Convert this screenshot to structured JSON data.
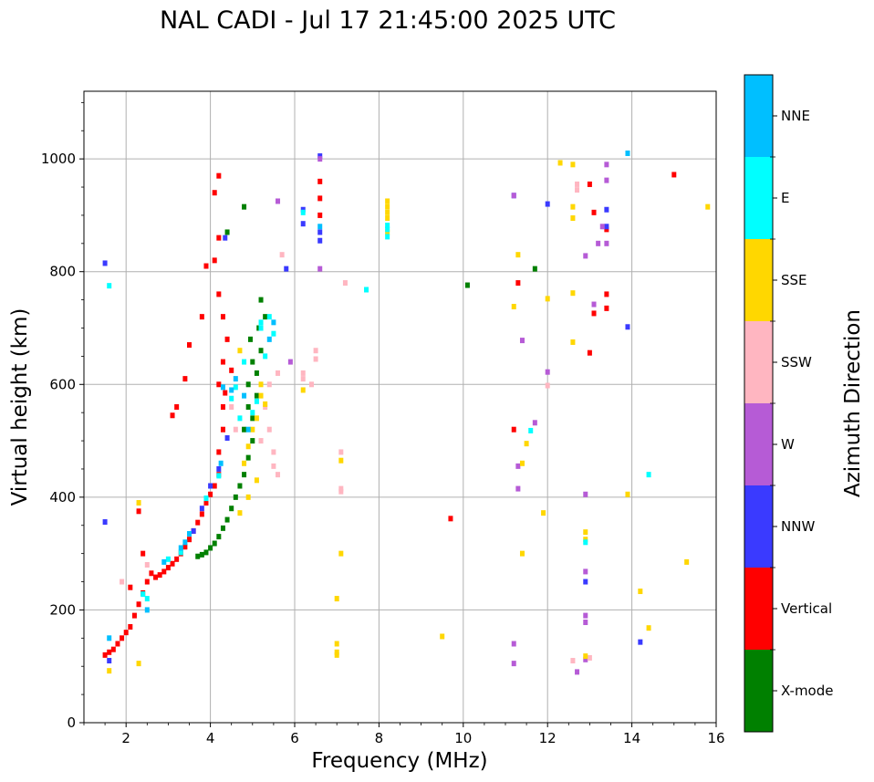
{
  "chart_data": {
    "type": "scatter",
    "title": "NAL CADI - Jul 17 21:45:00 2025 UTC",
    "xlabel": "Frequency (MHz)",
    "ylabel": "Virtual height (km)",
    "xlim": [
      1,
      16
    ],
    "ylim": [
      0,
      1120
    ],
    "xticks": [
      2,
      4,
      6,
      8,
      10,
      12,
      14,
      16
    ],
    "yticks": [
      0,
      200,
      400,
      600,
      800,
      1000
    ],
    "grid": true,
    "colorbar": {
      "label": "Azimuth Direction",
      "categories": [
        {
          "name": "X-mode",
          "color": "#008000"
        },
        {
          "name": "Vertical",
          "color": "#ff0000"
        },
        {
          "name": "NNW",
          "color": "#3a3aff"
        },
        {
          "name": "W",
          "color": "#b65bd6"
        },
        {
          "name": "SSW",
          "color": "#ffb6c1"
        },
        {
          "name": "SSE",
          "color": "#ffd700"
        },
        {
          "name": "E",
          "color": "#00ffff"
        },
        {
          "name": "NNE",
          "color": "#00bfff"
        }
      ]
    },
    "series": [
      {
        "name": "X-mode",
        "points": [
          [
            3.7,
            295
          ],
          [
            3.8,
            298
          ],
          [
            3.9,
            302
          ],
          [
            4.0,
            310
          ],
          [
            4.1,
            318
          ],
          [
            4.2,
            330
          ],
          [
            4.3,
            345
          ],
          [
            4.4,
            360
          ],
          [
            4.5,
            380
          ],
          [
            4.6,
            400
          ],
          [
            4.7,
            420
          ],
          [
            4.8,
            440
          ],
          [
            4.9,
            470
          ],
          [
            5.0,
            500
          ],
          [
            5.0,
            540
          ],
          [
            5.1,
            580
          ],
          [
            5.1,
            620
          ],
          [
            5.2,
            660
          ],
          [
            4.9,
            560
          ],
          [
            4.9,
            600
          ],
          [
            4.8,
            520
          ],
          [
            5.0,
            640
          ],
          [
            4.4,
            870
          ],
          [
            4.8,
            915
          ],
          [
            5.2,
            750
          ],
          [
            5.3,
            720
          ],
          [
            10.1,
            776
          ],
          [
            11.7,
            805
          ],
          [
            4.95,
            680
          ],
          [
            5.15,
            700
          ]
        ]
      },
      {
        "name": "Vertical",
        "points": [
          [
            1.5,
            120
          ],
          [
            1.6,
            125
          ],
          [
            1.7,
            130
          ],
          [
            1.8,
            140
          ],
          [
            1.9,
            150
          ],
          [
            2.0,
            160
          ],
          [
            2.1,
            170
          ],
          [
            2.2,
            190
          ],
          [
            2.3,
            210
          ],
          [
            2.4,
            230
          ],
          [
            2.5,
            250
          ],
          [
            2.6,
            265
          ],
          [
            2.7,
            258
          ],
          [
            2.8,
            262
          ],
          [
            2.9,
            268
          ],
          [
            3.0,
            275
          ],
          [
            3.1,
            282
          ],
          [
            3.2,
            290
          ],
          [
            3.3,
            300
          ],
          [
            3.4,
            312
          ],
          [
            3.5,
            325
          ],
          [
            3.6,
            340
          ],
          [
            3.7,
            355
          ],
          [
            3.8,
            370
          ],
          [
            3.9,
            390
          ],
          [
            4.0,
            405
          ],
          [
            4.1,
            420
          ],
          [
            4.2,
            440
          ],
          [
            4.2,
            480
          ],
          [
            4.3,
            520
          ],
          [
            4.3,
            560
          ],
          [
            4.2,
            600
          ],
          [
            4.3,
            640
          ],
          [
            4.4,
            680
          ],
          [
            4.3,
            720
          ],
          [
            4.2,
            760
          ],
          [
            4.1,
            820
          ],
          [
            4.2,
            860
          ],
          [
            4.1,
            940
          ],
          [
            4.2,
            970
          ],
          [
            3.5,
            670
          ],
          [
            3.4,
            610
          ],
          [
            3.2,
            560
          ],
          [
            3.1,
            545
          ],
          [
            3.8,
            720
          ],
          [
            3.9,
            810
          ],
          [
            2.3,
            375
          ],
          [
            2.4,
            300
          ],
          [
            2.1,
            240
          ],
          [
            6.6,
            960
          ],
          [
            6.6,
            930
          ],
          [
            6.6,
            900
          ],
          [
            9.7,
            362
          ],
          [
            11.2,
            520
          ],
          [
            11.3,
            780
          ],
          [
            13.0,
            656
          ],
          [
            13.4,
            875
          ],
          [
            13.4,
            760
          ],
          [
            13.4,
            735
          ],
          [
            13.1,
            905
          ],
          [
            15.0,
            972
          ],
          [
            13.0,
            955
          ],
          [
            13.1,
            726
          ],
          [
            4.5,
            625
          ],
          [
            4.35,
            585
          ]
        ]
      },
      {
        "name": "NNW",
        "points": [
          [
            1.5,
            815
          ],
          [
            1.5,
            356
          ],
          [
            1.6,
            110
          ],
          [
            3.6,
            340
          ],
          [
            3.8,
            380
          ],
          [
            4.0,
            420
          ],
          [
            4.2,
            450
          ],
          [
            4.4,
            505
          ],
          [
            6.2,
            910
          ],
          [
            6.2,
            885
          ],
          [
            6.6,
            870
          ],
          [
            6.6,
            855
          ],
          [
            5.8,
            805
          ],
          [
            11.2,
            935
          ],
          [
            12.0,
            920
          ],
          [
            13.4,
            910
          ],
          [
            13.4,
            880
          ],
          [
            13.9,
            702
          ],
          [
            14.2,
            143
          ],
          [
            12.9,
            250
          ],
          [
            6.6,
            1005
          ],
          [
            4.35,
            860
          ]
        ]
      },
      {
        "name": "W",
        "points": [
          [
            5.9,
            640
          ],
          [
            6.6,
            1000
          ],
          [
            6.6,
            805
          ],
          [
            5.6,
            925
          ],
          [
            11.2,
            935
          ],
          [
            11.4,
            678
          ],
          [
            11.7,
            532
          ],
          [
            12.0,
            622
          ],
          [
            11.3,
            455
          ],
          [
            11.3,
            415
          ],
          [
            12.9,
            828
          ],
          [
            13.4,
            990
          ],
          [
            13.4,
            962
          ],
          [
            13.4,
            850
          ],
          [
            13.2,
            850
          ],
          [
            13.1,
            742
          ],
          [
            12.9,
            405
          ],
          [
            12.9,
            268
          ],
          [
            12.9,
            190
          ],
          [
            12.9,
            178
          ],
          [
            12.9,
            112
          ],
          [
            12.7,
            90
          ],
          [
            11.2,
            105
          ],
          [
            11.2,
            140
          ],
          [
            13.3,
            880
          ]
        ]
      },
      {
        "name": "SSW",
        "points": [
          [
            5.3,
            560
          ],
          [
            5.4,
            520
          ],
          [
            5.5,
            480
          ],
          [
            5.5,
            455
          ],
          [
            5.6,
            440
          ],
          [
            5.2,
            500
          ],
          [
            5.4,
            600
          ],
          [
            5.6,
            620
          ],
          [
            6.2,
            620
          ],
          [
            6.2,
            610
          ],
          [
            6.4,
            600
          ],
          [
            6.5,
            660
          ],
          [
            6.5,
            645
          ],
          [
            7.1,
            480
          ],
          [
            7.2,
            780
          ],
          [
            5.7,
            830
          ],
          [
            12.7,
            955
          ],
          [
            12.7,
            945
          ],
          [
            12.0,
            598
          ],
          [
            12.6,
            110
          ],
          [
            13.0,
            115
          ],
          [
            1.9,
            250
          ],
          [
            2.5,
            280
          ],
          [
            4.6,
            520
          ],
          [
            4.5,
            560
          ],
          [
            7.1,
            415
          ],
          [
            7.1,
            410
          ]
        ]
      },
      {
        "name": "SSE",
        "points": [
          [
            5.2,
            600
          ],
          [
            5.2,
            580
          ],
          [
            5.3,
            565
          ],
          [
            5.1,
            540
          ],
          [
            5.0,
            520
          ],
          [
            4.9,
            490
          ],
          [
            4.8,
            460
          ],
          [
            5.1,
            430
          ],
          [
            4.9,
            400
          ],
          [
            4.7,
            372
          ],
          [
            2.3,
            390
          ],
          [
            2.3,
            105
          ],
          [
            1.6,
            92
          ],
          [
            8.2,
            925
          ],
          [
            8.2,
            915
          ],
          [
            8.2,
            905
          ],
          [
            8.2,
            895
          ],
          [
            8.2,
            870
          ],
          [
            7.0,
            220
          ],
          [
            7.0,
            140
          ],
          [
            7.0,
            125
          ],
          [
            7.0,
            120
          ],
          [
            7.1,
            465
          ],
          [
            7.1,
            300
          ],
          [
            9.5,
            153
          ],
          [
            11.2,
            738
          ],
          [
            11.3,
            830
          ],
          [
            11.4,
            460
          ],
          [
            11.4,
            300
          ],
          [
            11.5,
            495
          ],
          [
            11.9,
            372
          ],
          [
            12.0,
            752
          ],
          [
            12.3,
            993
          ],
          [
            12.6,
            990
          ],
          [
            12.6,
            915
          ],
          [
            12.6,
            895
          ],
          [
            12.6,
            762
          ],
          [
            12.6,
            675
          ],
          [
            12.9,
            338
          ],
          [
            12.9,
            325
          ],
          [
            12.9,
            118
          ],
          [
            13.9,
            405
          ],
          [
            14.2,
            233
          ],
          [
            14.4,
            168
          ],
          [
            15.3,
            285
          ],
          [
            15.8,
            915
          ],
          [
            6.2,
            590
          ],
          [
            4.7,
            660
          ]
        ]
      },
      {
        "name": "E",
        "points": [
          [
            1.6,
            775
          ],
          [
            2.4,
            228
          ],
          [
            2.5,
            220
          ],
          [
            3.0,
            290
          ],
          [
            3.3,
            302
          ],
          [
            3.9,
            398
          ],
          [
            4.2,
            438
          ],
          [
            4.5,
            575
          ],
          [
            4.6,
            595
          ],
          [
            4.7,
            540
          ],
          [
            5.0,
            550
          ],
          [
            5.1,
            570
          ],
          [
            5.2,
            700
          ],
          [
            5.2,
            710
          ],
          [
            5.4,
            720
          ],
          [
            5.5,
            690
          ],
          [
            6.2,
            905
          ],
          [
            7.7,
            768
          ],
          [
            8.2,
            882
          ],
          [
            8.2,
            875
          ],
          [
            8.2,
            862
          ],
          [
            11.6,
            518
          ],
          [
            12.9,
            320
          ],
          [
            14.4,
            440
          ],
          [
            4.8,
            640
          ],
          [
            5.3,
            650
          ]
        ]
      },
      {
        "name": "NNE",
        "points": [
          [
            1.6,
            150
          ],
          [
            2.5,
            200
          ],
          [
            2.9,
            285
          ],
          [
            3.3,
            310
          ],
          [
            3.4,
            320
          ],
          [
            3.5,
            335
          ],
          [
            4.3,
            595
          ],
          [
            4.5,
            590
          ],
          [
            4.6,
            610
          ],
          [
            4.8,
            580
          ],
          [
            5.4,
            680
          ],
          [
            5.5,
            710
          ],
          [
            6.6,
            880
          ],
          [
            13.9,
            1010
          ],
          [
            4.25,
            460
          ],
          [
            4.9,
            520
          ]
        ]
      }
    ]
  }
}
